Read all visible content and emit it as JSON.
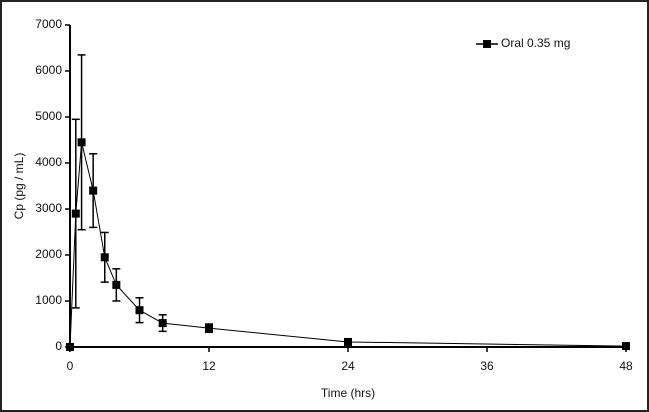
{
  "chart_data": {
    "type": "line",
    "x_label": "Time (hrs)",
    "y_label": "Cp (pg / mL)",
    "x": [
      0,
      0.5,
      1,
      2,
      3,
      4,
      6,
      8,
      12,
      24,
      48
    ],
    "series": [
      {
        "name": "Oral 0.35 mg",
        "color": "#000000",
        "values": [
          0,
          2900,
          4450,
          3400,
          1950,
          1350,
          800,
          520,
          410,
          110,
          20
        ],
        "errors": [
          null,
          2050,
          1900,
          800,
          540,
          350,
          270,
          180,
          90,
          40,
          null
        ]
      }
    ],
    "xlim": [
      0,
      48
    ],
    "xticks": [
      0,
      12,
      24,
      36,
      48
    ],
    "ylim": [
      0,
      7000
    ],
    "yticks": [
      0,
      1000,
      2000,
      3000,
      4000,
      5000,
      6000,
      7000
    ],
    "grid": false,
    "legend": "upper right"
  }
}
